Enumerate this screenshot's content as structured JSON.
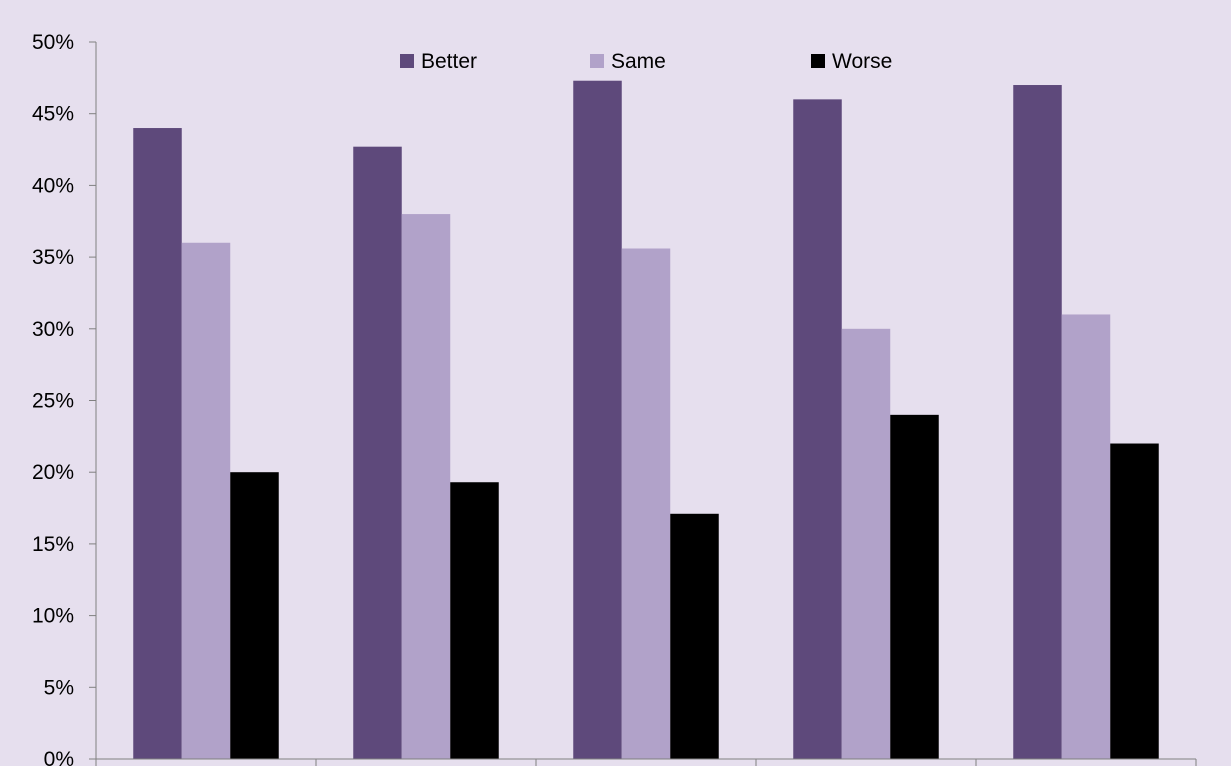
{
  "chart_data": {
    "type": "bar",
    "categories": [
      "",
      "",
      "",
      "",
      ""
    ],
    "series": [
      {
        "name": "Better",
        "color": "#5e497b",
        "values": [
          44,
          42.7,
          47.3,
          46,
          47
        ]
      },
      {
        "name": "Same",
        "color": "#b1a2c9",
        "values": [
          36,
          38,
          35.6,
          30,
          31
        ]
      },
      {
        "name": "Worse",
        "color": "#000000",
        "values": [
          20,
          19.3,
          17.1,
          24,
          22
        ]
      }
    ],
    "ylim": [
      0,
      50
    ],
    "yticks": [
      "0%",
      "5%",
      "10%",
      "15%",
      "20%",
      "25%",
      "30%",
      "35%",
      "40%",
      "45%",
      "50%"
    ],
    "title": "",
    "xlabel": "",
    "ylabel": "",
    "grid": false,
    "legend": "top"
  }
}
